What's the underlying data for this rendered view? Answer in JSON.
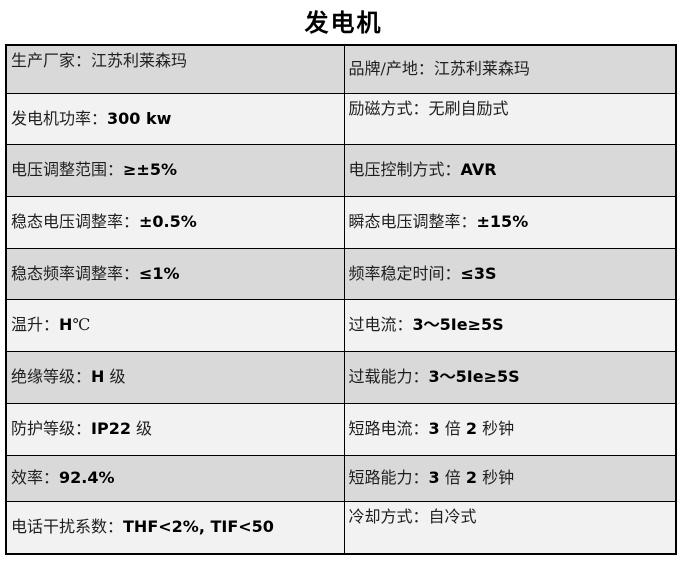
{
  "title": "发电机",
  "colors": {
    "row_shade_dark": "#d9d9d9",
    "row_shade_light": "#f2f2f2",
    "border": "#000000",
    "text": "#1f1f1f"
  },
  "table": {
    "rows": [
      {
        "left": [
          {
            "t": "生产厂家：江苏利莱森玛",
            "b": false
          }
        ],
        "right": [
          {
            "t": "品牌/产地：江苏利莱森玛",
            "b": false
          }
        ]
      },
      {
        "left": [
          {
            "t": "发电机功率：",
            "b": false
          },
          {
            "t": "300 kw",
            "b": true
          }
        ],
        "right": [
          {
            "t": "励磁方式：无刷自励式",
            "b": false
          }
        ]
      },
      {
        "left": [
          {
            "t": "电压调整范围：",
            "b": false
          },
          {
            "t": "≥±5%",
            "b": true
          }
        ],
        "right": [
          {
            "t": "电压控制方式：",
            "b": false
          },
          {
            "t": "AVR",
            "b": true
          }
        ]
      },
      {
        "left": [
          {
            "t": "稳态电压调整率：",
            "b": false
          },
          {
            "t": "±0.5%",
            "b": true
          }
        ],
        "right": [
          {
            "t": "瞬态电压调整率：",
            "b": false
          },
          {
            "t": "±15%",
            "b": true
          }
        ]
      },
      {
        "left": [
          {
            "t": "稳态频率调整率：",
            "b": false
          },
          {
            "t": "≤1%",
            "b": true
          }
        ],
        "right": [
          {
            "t": "频率稳定时间：",
            "b": false
          },
          {
            "t": "≤3S",
            "b": true
          }
        ]
      },
      {
        "left": [
          {
            "t": "温升：",
            "b": false
          },
          {
            "t": "H",
            "b": true
          },
          {
            "t": "℃",
            "b": false
          }
        ],
        "right": [
          {
            "t": "过电流：",
            "b": false
          },
          {
            "t": "3～5Ie≥5S",
            "b": true
          }
        ]
      },
      {
        "left": [
          {
            "t": "绝缘等级：",
            "b": false
          },
          {
            "t": "H",
            "b": true
          },
          {
            "t": " 级",
            "b": false
          }
        ],
        "right": [
          {
            "t": "过载能力：",
            "b": false
          },
          {
            "t": "3～5Ie≥5S",
            "b": true
          }
        ]
      },
      {
        "left": [
          {
            "t": "防护等级：",
            "b": false
          },
          {
            "t": "IP22",
            "b": true
          },
          {
            "t": " 级",
            "b": false
          }
        ],
        "right": [
          {
            "t": "短路电流：",
            "b": false
          },
          {
            "t": "3",
            "b": true
          },
          {
            "t": " 倍 ",
            "b": false
          },
          {
            "t": "2",
            "b": true
          },
          {
            "t": " 秒钟",
            "b": false
          }
        ]
      },
      {
        "left": [
          {
            "t": "效率：",
            "b": false
          },
          {
            "t": "92.4%",
            "b": true
          }
        ],
        "right": [
          {
            "t": "短路能力：",
            "b": false
          },
          {
            "t": "3",
            "b": true
          },
          {
            "t": " 倍 ",
            "b": false
          },
          {
            "t": "2",
            "b": true
          },
          {
            "t": " 秒钟",
            "b": false
          }
        ]
      },
      {
        "left": [
          {
            "t": "电话干扰系数：",
            "b": false
          },
          {
            "t": "THF<2%, TIF<50",
            "b": true
          }
        ],
        "right": [
          {
            "t": "冷却方式：自冷式",
            "b": false
          }
        ]
      }
    ]
  }
}
